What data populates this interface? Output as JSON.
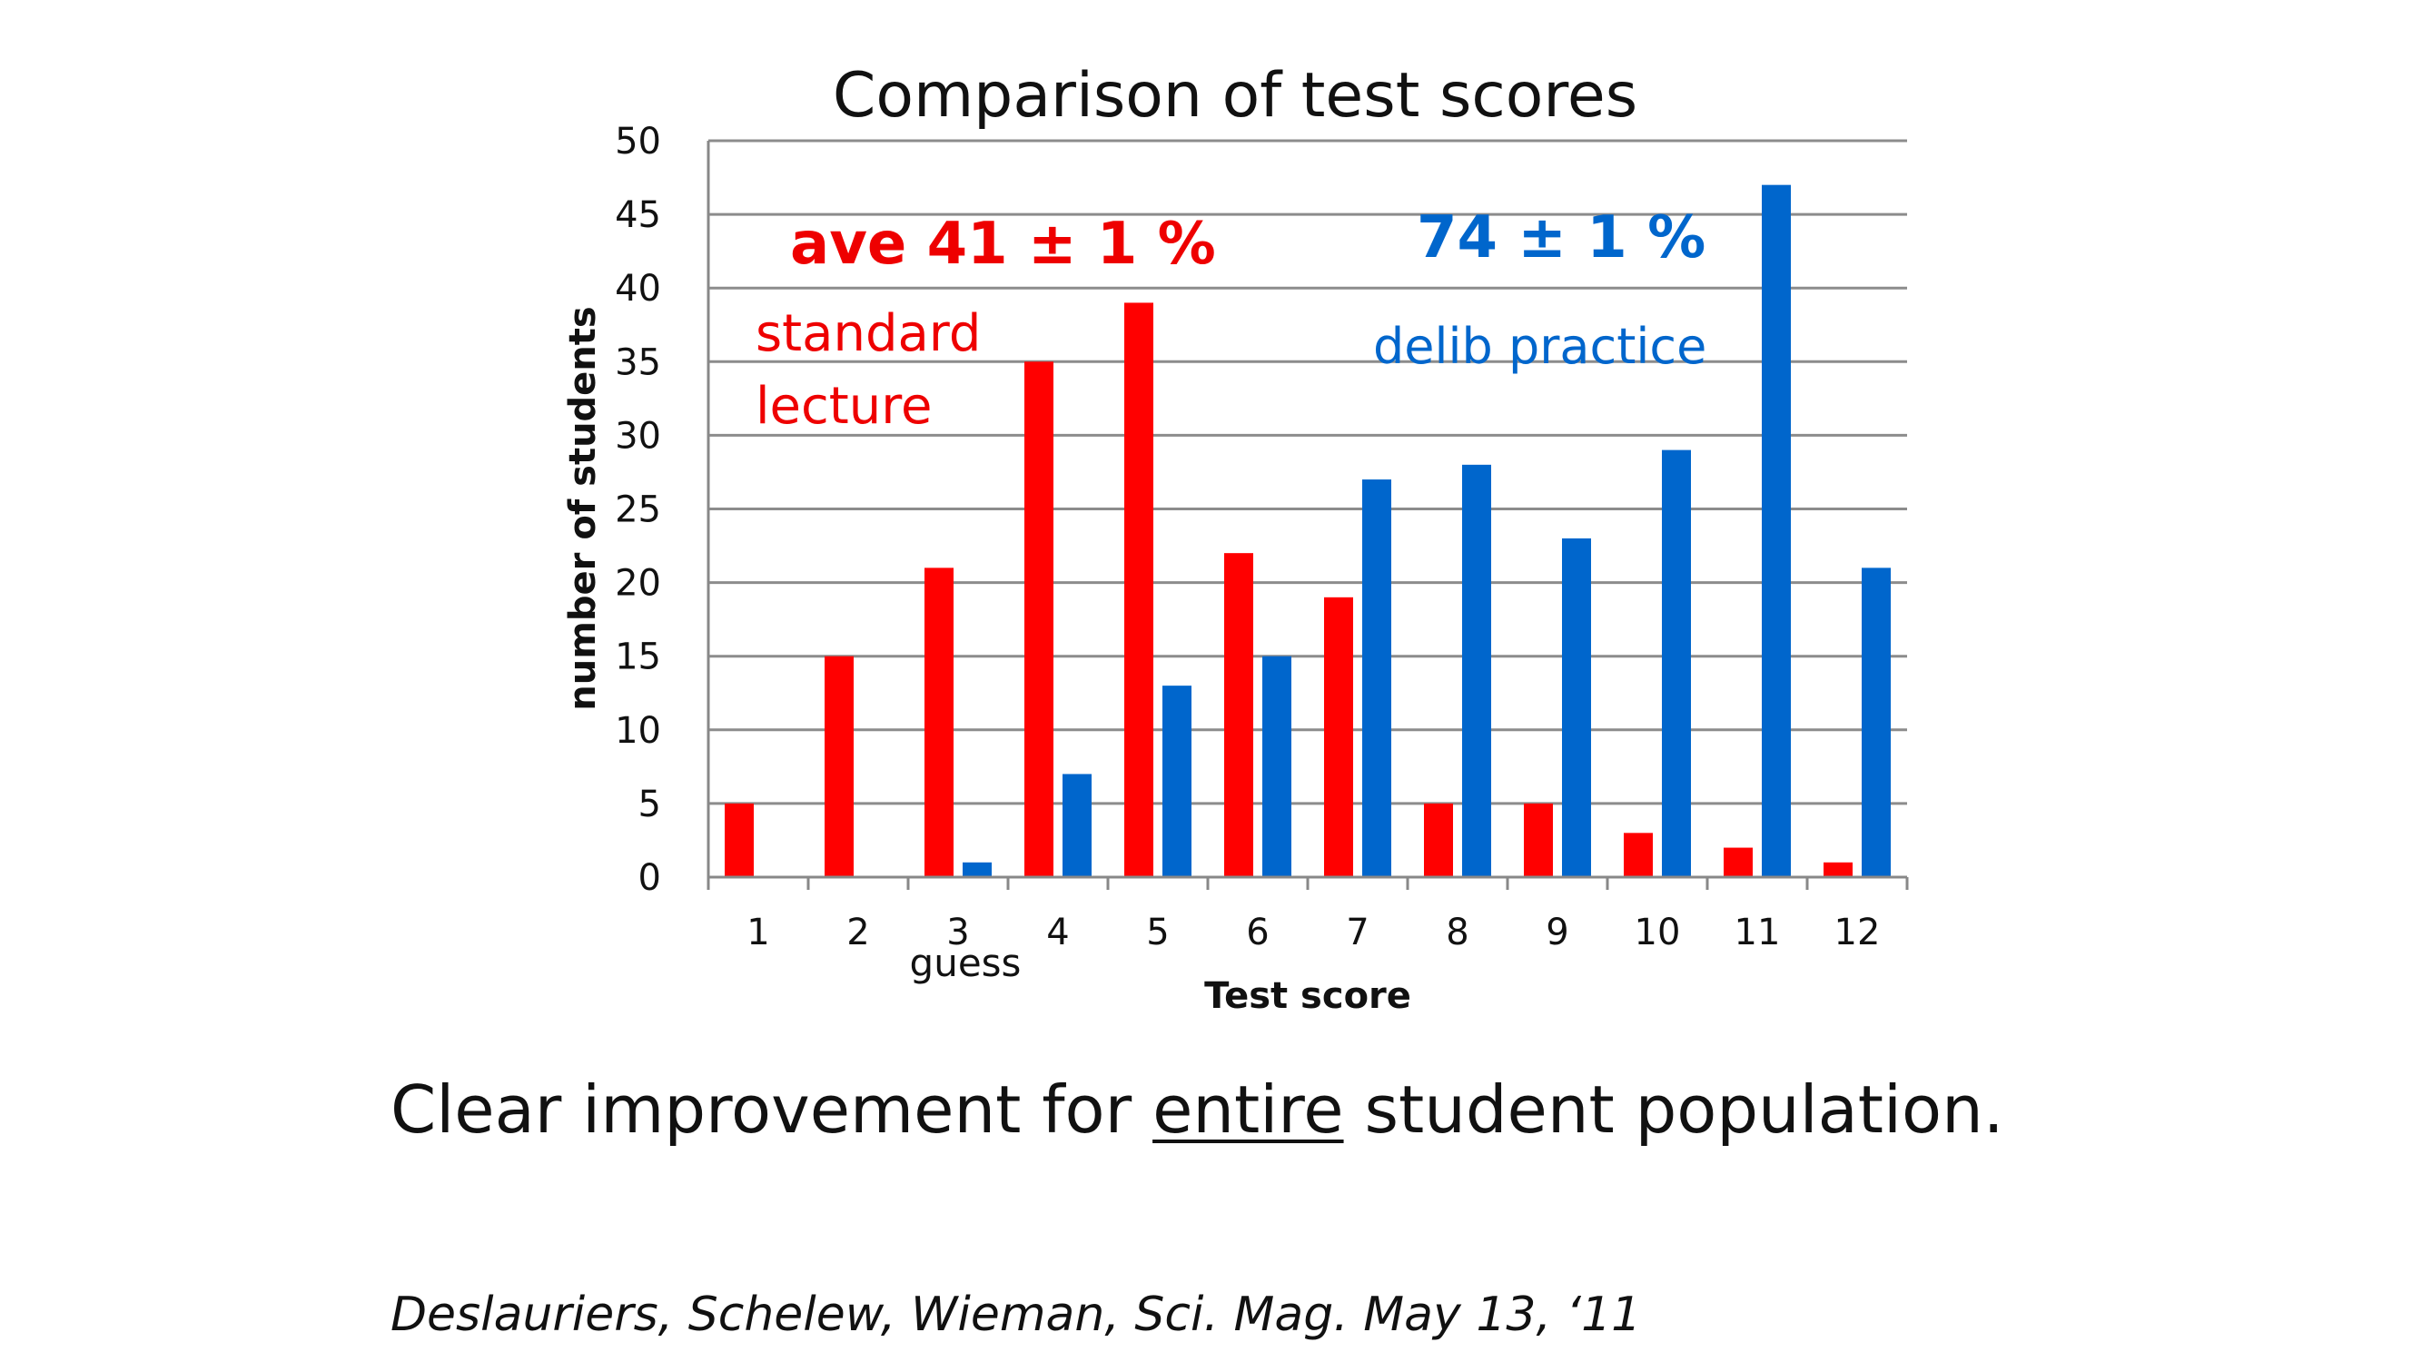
{
  "chart_data": {
    "type": "bar",
    "title": "Comparison of test scores",
    "xlabel": "Test score",
    "ylabel": "number of students",
    "categories": [
      "1",
      "2",
      "3",
      "4",
      "5",
      "6",
      "7",
      "8",
      "9",
      "10",
      "11",
      "12"
    ],
    "ylim": [
      0,
      50
    ],
    "yticks": [
      "0",
      "5",
      "10",
      "15",
      "20",
      "25",
      "30",
      "35",
      "40",
      "45",
      "50"
    ],
    "grid": true,
    "series": [
      {
        "values": [
          5,
          15,
          21,
          35,
          39,
          22,
          19,
          5,
          5,
          3,
          2,
          1
        ],
        "color": "#ff0000"
      },
      {
        "values": [
          0,
          0,
          1,
          7,
          13,
          15,
          27,
          28,
          23,
          29,
          47,
          21
        ],
        "color": "#0066cc"
      }
    ],
    "annotations": {
      "red_average": "ave 41 ± 1 %",
      "red_label_line1": "standard",
      "red_label_line2": "lecture",
      "blue_average": "74 ± 1 %",
      "blue_label": "delib practice",
      "guess": "guess"
    }
  },
  "caption": {
    "before": "Clear improvement for ",
    "underlined": "entire",
    "after": " student population."
  },
  "citation": "Deslauriers, Schelew, Wieman, Sci. Mag.  May 13, ‘11"
}
